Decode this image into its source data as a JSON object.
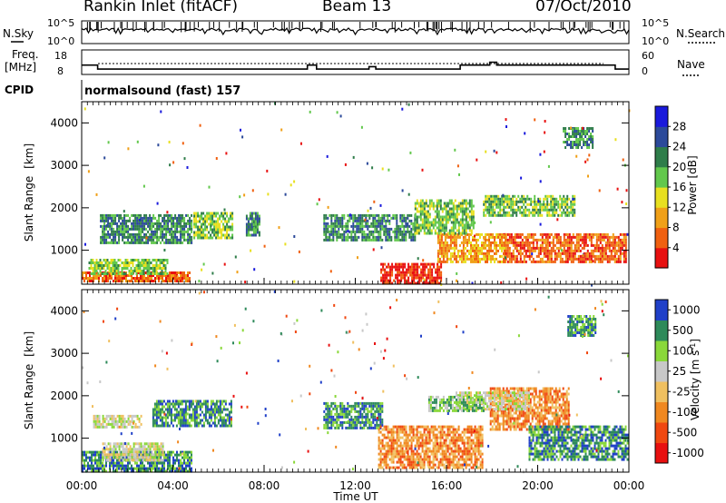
{
  "header": {
    "station": "Rankin Inlet (fitACF)",
    "beam": "Beam 13",
    "date": "07/Oct/2010"
  },
  "labels": {
    "nsky": "N.Sky",
    "nsearch": "N.Search",
    "freq_1": "Freq.",
    "freq_2": "[MHz]",
    "nave": "Nave",
    "cpid": "CPID",
    "cpid_value": "normalsound (fast) 157",
    "slant_range": "Slant Range",
    "km": "[km]",
    "time_axis": "Time UT"
  },
  "colors": {
    "power": [
      "#1a1adc",
      "#2c4a9a",
      "#2f7d4a",
      "#62c84c",
      "#e8e020",
      "#f0a018",
      "#f06010",
      "#e81010"
    ],
    "velocity": [
      "#2040c8",
      "#2e8a5a",
      "#8ad83a",
      "#c8c8c8",
      "#f0c060",
      "#f08820",
      "#f04810",
      "#e81010"
    ]
  },
  "chart_data": [
    {
      "type": "line",
      "panel": "noise",
      "x_range_hours": [
        0,
        24
      ],
      "left_axis": {
        "label": "N.Sky",
        "ticks": [
          "10^5",
          "10^0"
        ]
      },
      "right_axis": {
        "label": "N.Search",
        "ticks": [
          "10^5",
          "10^0"
        ]
      }
    },
    {
      "type": "line",
      "panel": "frequency",
      "x_range_hours": [
        0,
        24
      ],
      "left_axis": {
        "label": "Freq. [MHz]",
        "ticks": [
          "18",
          "8"
        ],
        "ylim": [
          8,
          18
        ]
      },
      "right_axis": {
        "label": "Nave",
        "ticks": [
          "60",
          "0"
        ],
        "ylim": [
          0,
          60
        ]
      },
      "freq_steps": [
        {
          "x": [
            0.0,
            0.7
          ],
          "y": 11.8
        },
        {
          "x": [
            0.7,
            9.9
          ],
          "y": 10.2
        },
        {
          "x": [
            9.9,
            10.3
          ],
          "y": 11.8
        },
        {
          "x": [
            10.3,
            12.6
          ],
          "y": 10.2
        },
        {
          "x": [
            12.6,
            12.9
          ],
          "y": 11.2
        },
        {
          "x": [
            12.9,
            16.6
          ],
          "y": 10.2
        },
        {
          "x": [
            16.6,
            17.9
          ],
          "y": 11.8
        },
        {
          "x": [
            17.9,
            18.2
          ],
          "y": 13.0
        },
        {
          "x": [
            18.2,
            23.4
          ],
          "y": 11.8
        },
        {
          "x": [
            23.4,
            24.0
          ],
          "y": 10.2
        }
      ],
      "nave_dotted": 12
    },
    {
      "type": "heatmap",
      "panel": "power",
      "x_label": "",
      "y_label": "Slant Range [km]",
      "ylim": [
        200,
        4500
      ],
      "y_ticks": [
        1000,
        2000,
        3000,
        4000
      ],
      "colorbar": {
        "label": "Power [dB]",
        "ticks": [
          "4",
          "8",
          "12",
          "16",
          "20",
          "24",
          "28"
        ]
      },
      "regions": [
        {
          "t": [
            0.0,
            4.7
          ],
          "r": [
            250,
            500
          ],
          "level": 6
        },
        {
          "t": [
            0.3,
            3.8
          ],
          "r": [
            450,
            800
          ],
          "level": 3
        },
        {
          "t": [
            0.8,
            4.8
          ],
          "r": [
            1150,
            1850
          ],
          "level": 2
        },
        {
          "t": [
            4.9,
            6.6
          ],
          "r": [
            1300,
            1900
          ],
          "level": 3
        },
        {
          "t": [
            7.2,
            7.8
          ],
          "r": [
            1350,
            1900
          ],
          "level": 2
        },
        {
          "t": [
            10.6,
            14.6
          ],
          "r": [
            1250,
            1850
          ],
          "level": 2
        },
        {
          "t": [
            13.1,
            15.8
          ],
          "r": [
            250,
            700
          ],
          "level": 7
        },
        {
          "t": [
            15.6,
            18.6
          ],
          "r": [
            750,
            1400
          ],
          "level": 5
        },
        {
          "t": [
            18.5,
            23.9
          ],
          "r": [
            700,
            1400
          ],
          "level": 6
        },
        {
          "t": [
            14.6,
            17.2
          ],
          "r": [
            1400,
            2200
          ],
          "level": 3
        },
        {
          "t": [
            17.6,
            21.6
          ],
          "r": [
            1800,
            2300
          ],
          "level": 3
        },
        {
          "t": [
            21.1,
            22.4
          ],
          "r": [
            3400,
            3900
          ],
          "level": 2
        }
      ]
    },
    {
      "type": "heatmap",
      "panel": "velocity",
      "x_label": "Time UT",
      "y_label": "Slant Range [km]",
      "ylim": [
        200,
        4500
      ],
      "y_ticks": [
        1000,
        2000,
        3000,
        4000
      ],
      "x_ticks": [
        "00:00",
        "04:00",
        "08:00",
        "12:00",
        "16:00",
        "20:00",
        "00:00"
      ],
      "colorbar": {
        "label": "Velocity [m s^-1]",
        "ticks": [
          "1000",
          "500",
          "100",
          "25",
          "-25",
          "-100",
          "-500",
          "-1000"
        ]
      },
      "regions": [
        {
          "t": [
            0.0,
            4.8
          ],
          "r": [
            250,
            700
          ],
          "level": 1
        },
        {
          "t": [
            0.9,
            3.6
          ],
          "r": [
            500,
            900
          ],
          "level": 3
        },
        {
          "t": [
            0.5,
            2.6
          ],
          "r": [
            1250,
            1550
          ],
          "level": 3
        },
        {
          "t": [
            3.1,
            6.6
          ],
          "r": [
            1300,
            1900
          ],
          "level": 1
        },
        {
          "t": [
            10.6,
            13.2
          ],
          "r": [
            1250,
            1850
          ],
          "level": 1
        },
        {
          "t": [
            13.0,
            17.6
          ],
          "r": [
            300,
            1300
          ],
          "level": 5
        },
        {
          "t": [
            17.9,
            21.4
          ],
          "r": [
            1200,
            2200
          ],
          "level": 5
        },
        {
          "t": [
            16.4,
            19.6
          ],
          "r": [
            1700,
            2100
          ],
          "level": 3
        },
        {
          "t": [
            19.6,
            23.9
          ],
          "r": [
            500,
            1300
          ],
          "level": 1
        },
        {
          "t": [
            15.2,
            17.6
          ],
          "r": [
            1650,
            2000
          ],
          "level": 2
        },
        {
          "t": [
            21.3,
            22.5
          ],
          "r": [
            3400,
            3900
          ],
          "level": 1
        }
      ]
    }
  ]
}
